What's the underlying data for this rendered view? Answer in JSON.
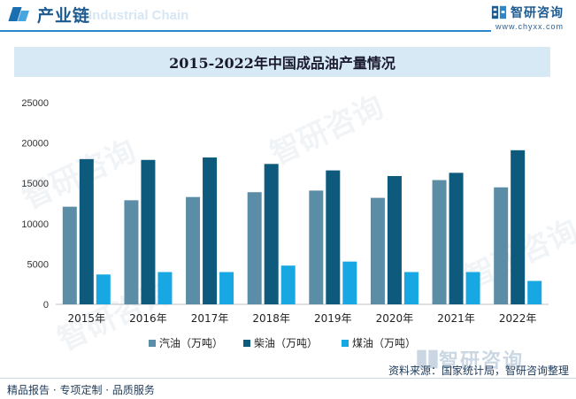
{
  "header": {
    "title": "产业链",
    "subtitle": "Industrial Chain",
    "brand_name": "智研咨询",
    "brand_url": "www.chyxx.com"
  },
  "chart_title": "2015-2022年中国成品油产量情况",
  "chart_data": {
    "type": "bar",
    "title": "2015-2022年中国成品油产量情况",
    "categories": [
      "2015年",
      "2016年",
      "2017年",
      "2018年",
      "2019年",
      "2020年",
      "2021年",
      "2022年"
    ],
    "series": [
      {
        "name": "汽油（万吨）",
        "color": "#5b8ea6",
        "values": [
          12100,
          12900,
          13300,
          13900,
          14100,
          13200,
          15400,
          14500
        ]
      },
      {
        "name": "柴油（万吨）",
        "color": "#0d5a7d",
        "values": [
          18000,
          17900,
          18200,
          17400,
          16600,
          15900,
          16300,
          19100
        ]
      },
      {
        "name": "煤油（万吨）",
        "color": "#17a8e3",
        "values": [
          3700,
          4000,
          4000,
          4800,
          5300,
          4000,
          4000,
          2900
        ]
      }
    ],
    "ylim": [
      0,
      25000
    ],
    "yticks": [
      0,
      5000,
      10000,
      15000,
      20000,
      25000
    ],
    "xlabel": "",
    "ylabel": "",
    "grid": false,
    "legend_position": "bottom"
  },
  "footer": {
    "left": "精品报告 · 专项定制 · 品质服务",
    "source": "资料来源：国家统计局，智研咨询整理"
  },
  "bottom_brand": "智研咨询",
  "watermark_text": "智研咨询"
}
